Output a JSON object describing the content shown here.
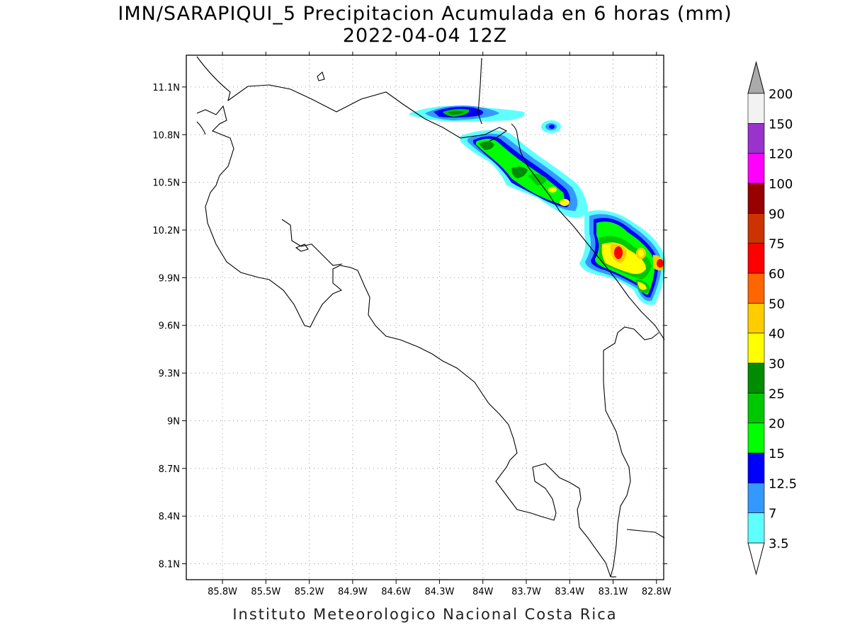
{
  "title": {
    "line1": "IMN/SARAPIQUI_5 Precipitacion Acumulada en 6 horas (mm)",
    "line2": "2022-04-04 12Z"
  },
  "footer": "Instituto Meteorologico Nacional Costa Rica",
  "map": {
    "lon_range": [
      -86.05,
      -82.75
    ],
    "lat_range": [
      8.0,
      11.3
    ],
    "lon_ticks": [
      {
        "value": -85.8,
        "label": "85.8W"
      },
      {
        "value": -85.5,
        "label": "85.5W"
      },
      {
        "value": -85.2,
        "label": "85.2W"
      },
      {
        "value": -84.9,
        "label": "84.9W"
      },
      {
        "value": -84.6,
        "label": "84.6W"
      },
      {
        "value": -84.3,
        "label": "84.3W"
      },
      {
        "value": -84.0,
        "label": "84W"
      },
      {
        "value": -83.7,
        "label": "83.7W"
      },
      {
        "value": -83.4,
        "label": "83.4W"
      },
      {
        "value": -83.1,
        "label": "83.1W"
      },
      {
        "value": -82.8,
        "label": "82.8W"
      }
    ],
    "lat_ticks": [
      {
        "value": 11.1,
        "label": "11.1N"
      },
      {
        "value": 10.8,
        "label": "10.8N"
      },
      {
        "value": 10.5,
        "label": "10.5N"
      },
      {
        "value": 10.2,
        "label": "10.2N"
      },
      {
        "value": 9.9,
        "label": "9.9N"
      },
      {
        "value": 9.6,
        "label": "9.6N"
      },
      {
        "value": 9.3,
        "label": "9.3N"
      },
      {
        "value": 9.0,
        "label": "9N"
      },
      {
        "value": 8.7,
        "label": "8.7N"
      },
      {
        "value": 8.4,
        "label": "8.4N"
      },
      {
        "value": 8.1,
        "label": "8.1N"
      }
    ],
    "grid": true
  },
  "colorbar": {
    "levels": [
      {
        "label": "3.5",
        "color": "#5fffff"
      },
      {
        "label": "7",
        "color": "#3399ff"
      },
      {
        "label": "12.5",
        "color": "#0000ff"
      },
      {
        "label": "15",
        "color": "#00ff00"
      },
      {
        "label": "20",
        "color": "#00c800"
      },
      {
        "label": "25",
        "color": "#008c00"
      },
      {
        "label": "30",
        "color": "#ffff00"
      },
      {
        "label": "40",
        "color": "#ffcc00"
      },
      {
        "label": "50",
        "color": "#ff6600"
      },
      {
        "label": "60",
        "color": "#ff0000"
      },
      {
        "label": "75",
        "color": "#cc3300"
      },
      {
        "label": "90",
        "color": "#990000"
      },
      {
        "label": "100",
        "color": "#ff00ff"
      },
      {
        "label": "120",
        "color": "#9933cc"
      },
      {
        "label": "150",
        "color": "#f2f2f2"
      },
      {
        "label": "200",
        "color": "#aaaaaa"
      }
    ],
    "colors_inside": [
      "#5fffff",
      "#3399ff",
      "#0000ff",
      "#00ff00",
      "#00c800",
      "#008c00",
      "#ffff00",
      "#ffcc00",
      "#ff6600",
      "#ff0000",
      "#cc3300",
      "#990000",
      "#ff00ff",
      "#9933cc",
      "#f2f2f2"
    ],
    "low_color": "#ffffff",
    "high_color": "#aaaaaa"
  }
}
